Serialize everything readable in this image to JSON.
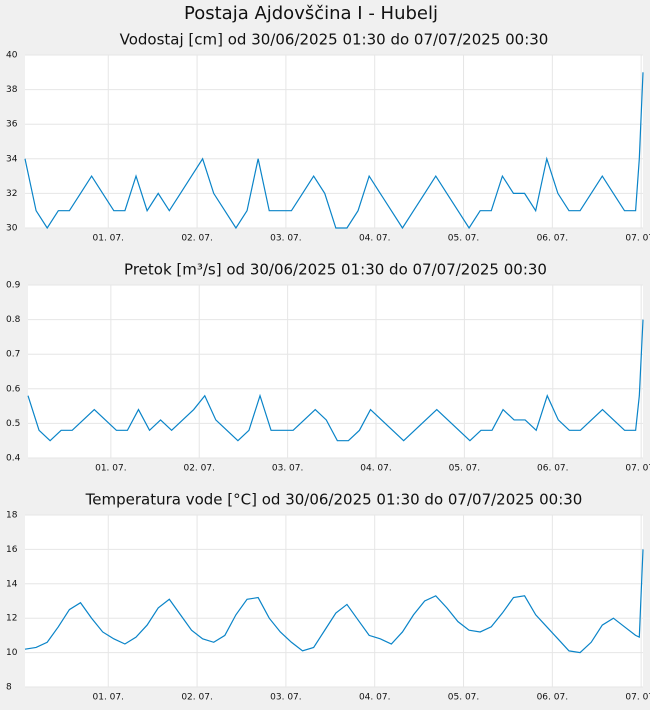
{
  "title": "Postaja Ajdovščina I - Hubelj",
  "chart_data": [
    {
      "type": "line",
      "title": "Vodostaj [cm] od 30/06/2025 01:30 do 07/07/2025 00:30",
      "color": "#0a84c8",
      "grid": true,
      "x": [
        0,
        3,
        6,
        9,
        12,
        15,
        18,
        21,
        24,
        27,
        30,
        33,
        36,
        39,
        42,
        45,
        48,
        51,
        54,
        57,
        60,
        63,
        66,
        69,
        72,
        75,
        78,
        81,
        84,
        87,
        90,
        93,
        96,
        99,
        102,
        105,
        108,
        111,
        114,
        117,
        120,
        123,
        126,
        129,
        132,
        135,
        138,
        141,
        144,
        147,
        150,
        153,
        156,
        159,
        162,
        165,
        166,
        167
      ],
      "values": [
        34,
        31,
        30,
        31,
        31,
        32,
        33,
        32,
        31,
        31,
        33,
        31,
        32,
        31,
        32,
        33,
        34,
        32,
        31,
        30,
        31,
        34,
        31,
        31,
        31,
        32,
        33,
        32,
        30,
        30,
        31,
        33,
        32,
        31,
        30,
        31,
        32,
        33,
        32,
        31,
        30,
        31,
        31,
        33,
        32,
        32,
        31,
        34,
        32,
        31,
        31,
        32,
        33,
        32,
        31,
        31,
        34,
        39
      ],
      "xlim": [
        0,
        167
      ],
      "xticks": [
        {
          "value": 22.5,
          "label": "01. 07."
        },
        {
          "value": 46.5,
          "label": "02. 07."
        },
        {
          "value": 70.5,
          "label": "03. 07."
        },
        {
          "value": 94.5,
          "label": "04. 07."
        },
        {
          "value": 118.5,
          "label": "05. 07."
        },
        {
          "value": 142.5,
          "label": "06. 07."
        },
        {
          "value": 166.5,
          "label": "07. 07."
        }
      ],
      "ylim": [
        30,
        40
      ],
      "yticks": [
        30,
        32,
        34,
        36,
        38,
        40
      ]
    },
    {
      "type": "line",
      "title": "Pretok [m³/s] od 30/06/2025 01:30 do 07/07/2025 00:30",
      "color": "#0a84c8",
      "grid": true,
      "x": [
        0,
        3,
        6,
        9,
        12,
        15,
        18,
        21,
        24,
        27,
        30,
        33,
        36,
        39,
        42,
        45,
        48,
        51,
        54,
        57,
        60,
        63,
        66,
        69,
        72,
        75,
        78,
        81,
        84,
        87,
        90,
        93,
        96,
        99,
        102,
        105,
        108,
        111,
        114,
        117,
        120,
        123,
        126,
        129,
        132,
        135,
        138,
        141,
        144,
        147,
        150,
        153,
        156,
        159,
        162,
        165,
        166,
        167
      ],
      "values": [
        0.58,
        0.48,
        0.45,
        0.48,
        0.48,
        0.51,
        0.54,
        0.51,
        0.48,
        0.48,
        0.54,
        0.48,
        0.51,
        0.48,
        0.51,
        0.54,
        0.58,
        0.51,
        0.48,
        0.45,
        0.48,
        0.58,
        0.48,
        0.48,
        0.48,
        0.51,
        0.54,
        0.51,
        0.45,
        0.45,
        0.48,
        0.54,
        0.51,
        0.48,
        0.45,
        0.48,
        0.51,
        0.54,
        0.51,
        0.48,
        0.45,
        0.48,
        0.48,
        0.54,
        0.51,
        0.51,
        0.48,
        0.58,
        0.51,
        0.48,
        0.48,
        0.51,
        0.54,
        0.51,
        0.48,
        0.48,
        0.58,
        0.8
      ],
      "xlim": [
        0,
        167
      ],
      "xticks": [
        {
          "value": 22.5,
          "label": "01. 07."
        },
        {
          "value": 46.5,
          "label": "02. 07."
        },
        {
          "value": 70.5,
          "label": "03. 07."
        },
        {
          "value": 94.5,
          "label": "04. 07."
        },
        {
          "value": 118.5,
          "label": "05. 07."
        },
        {
          "value": 142.5,
          "label": "06. 07."
        },
        {
          "value": 166.5,
          "label": "07. 07."
        }
      ],
      "ylim": [
        0.4,
        0.9
      ],
      "yticks": [
        0.4,
        0.5,
        0.6,
        0.7,
        0.8,
        0.9
      ]
    },
    {
      "type": "line",
      "title": "Temperatura vode [°C] od 30/06/2025 01:30 do 07/07/2025 00:30",
      "color": "#0a84c8",
      "grid": true,
      "x": [
        0,
        3,
        6,
        9,
        12,
        15,
        18,
        21,
        24,
        27,
        30,
        33,
        36,
        39,
        42,
        45,
        48,
        51,
        54,
        57,
        60,
        63,
        66,
        69,
        72,
        75,
        78,
        81,
        84,
        87,
        90,
        93,
        96,
        99,
        102,
        105,
        108,
        111,
        114,
        117,
        120,
        123,
        126,
        129,
        132,
        135,
        138,
        141,
        144,
        147,
        150,
        153,
        156,
        159,
        162,
        165,
        166,
        167
      ],
      "values": [
        10.2,
        10.3,
        10.6,
        11.5,
        12.5,
        12.9,
        12.0,
        11.2,
        10.8,
        10.5,
        10.9,
        11.6,
        12.6,
        13.1,
        12.2,
        11.3,
        10.8,
        10.6,
        11.0,
        12.2,
        13.1,
        13.2,
        12.0,
        11.2,
        10.6,
        10.1,
        10.3,
        11.3,
        12.3,
        12.8,
        11.9,
        11.0,
        10.8,
        10.5,
        11.2,
        12.2,
        13.0,
        13.3,
        12.6,
        11.8,
        11.3,
        11.2,
        11.5,
        12.3,
        13.2,
        13.3,
        12.2,
        11.5,
        10.8,
        10.1,
        10.0,
        10.6,
        11.6,
        12.0,
        11.5,
        11.0,
        10.9,
        16.0
      ],
      "xlim": [
        0,
        167
      ],
      "xticks": [
        {
          "value": 22.5,
          "label": "01. 07."
        },
        {
          "value": 46.5,
          "label": "02. 07."
        },
        {
          "value": 70.5,
          "label": "03. 07."
        },
        {
          "value": 94.5,
          "label": "04. 07."
        },
        {
          "value": 118.5,
          "label": "05. 07."
        },
        {
          "value": 142.5,
          "label": "06. 07."
        },
        {
          "value": 166.5,
          "label": "07. 07."
        }
      ],
      "ylim": [
        8,
        18
      ],
      "yticks": [
        8,
        10,
        12,
        14,
        16,
        18
      ]
    }
  ]
}
